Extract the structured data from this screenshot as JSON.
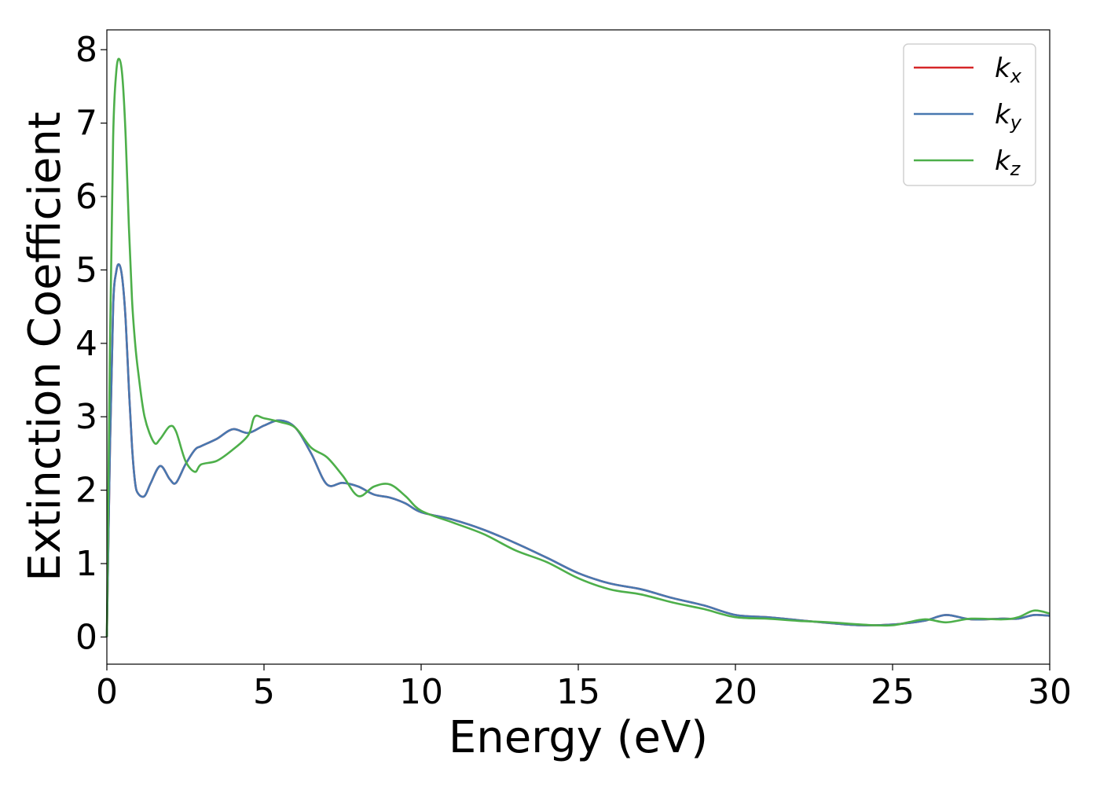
{
  "chart_data": {
    "type": "line",
    "xlabel": "Energy (eV)",
    "ylabel": "Extinction Coefficient",
    "xlim": [
      0,
      30
    ],
    "ylim": [
      -0.37,
      8.27
    ],
    "xticks": [
      0,
      5,
      10,
      15,
      20,
      25,
      30
    ],
    "yticks": [
      0,
      1,
      2,
      3,
      4,
      5,
      6,
      7,
      8
    ],
    "grid": false,
    "legend_position": "top-right",
    "series": [
      {
        "name": "k",
        "subscript": "x",
        "color": "#d62728",
        "x": [
          0,
          0.1,
          0.2,
          0.3,
          0.4,
          0.5,
          0.6,
          0.7,
          0.8,
          0.9,
          1.0,
          1.2,
          1.4,
          1.7,
          2.0,
          2.2,
          2.5,
          2.8,
          3.0,
          3.5,
          4.0,
          4.5,
          5.0,
          5.5,
          6.0,
          6.5,
          7.0,
          7.5,
          8.0,
          8.5,
          9.0,
          9.5,
          10.0,
          11.0,
          12.0,
          13.0,
          14.0,
          15.0,
          16.0,
          17.0,
          18.0,
          19.0,
          20.0,
          21.0,
          22.0,
          23.0,
          24.0,
          25.0,
          26.0,
          26.7,
          27.5,
          28.5,
          29.0,
          29.5,
          30.0
        ],
        "y": [
          0.0,
          2.6,
          4.5,
          4.98,
          5.07,
          4.85,
          4.3,
          3.4,
          2.6,
          2.1,
          1.95,
          1.92,
          2.1,
          2.33,
          2.15,
          2.1,
          2.35,
          2.55,
          2.6,
          2.7,
          2.83,
          2.78,
          2.88,
          2.95,
          2.85,
          2.5,
          2.08,
          2.1,
          2.05,
          1.94,
          1.9,
          1.82,
          1.7,
          1.6,
          1.46,
          1.28,
          1.08,
          0.87,
          0.73,
          0.65,
          0.53,
          0.43,
          0.3,
          0.27,
          0.23,
          0.19,
          0.16,
          0.17,
          0.22,
          0.3,
          0.24,
          0.25,
          0.25,
          0.3,
          0.29
        ]
      },
      {
        "name": "k",
        "subscript": "y",
        "color": "#4878b0",
        "x": [
          0,
          0.1,
          0.2,
          0.3,
          0.4,
          0.5,
          0.6,
          0.7,
          0.8,
          0.9,
          1.0,
          1.2,
          1.4,
          1.7,
          2.0,
          2.2,
          2.5,
          2.8,
          3.0,
          3.5,
          4.0,
          4.5,
          5.0,
          5.5,
          6.0,
          6.5,
          7.0,
          7.5,
          8.0,
          8.5,
          9.0,
          9.5,
          10.0,
          11.0,
          12.0,
          13.0,
          14.0,
          15.0,
          16.0,
          17.0,
          18.0,
          19.0,
          20.0,
          21.0,
          22.0,
          23.0,
          24.0,
          25.0,
          26.0,
          26.7,
          27.5,
          28.5,
          29.0,
          29.5,
          30.0
        ],
        "y": [
          0.0,
          2.6,
          4.5,
          4.98,
          5.07,
          4.85,
          4.3,
          3.4,
          2.6,
          2.1,
          1.95,
          1.92,
          2.1,
          2.33,
          2.15,
          2.1,
          2.35,
          2.55,
          2.6,
          2.7,
          2.83,
          2.78,
          2.88,
          2.95,
          2.85,
          2.5,
          2.08,
          2.1,
          2.05,
          1.94,
          1.9,
          1.82,
          1.7,
          1.6,
          1.46,
          1.28,
          1.08,
          0.87,
          0.73,
          0.65,
          0.53,
          0.43,
          0.3,
          0.27,
          0.23,
          0.19,
          0.16,
          0.17,
          0.22,
          0.3,
          0.24,
          0.25,
          0.25,
          0.3,
          0.29
        ]
      },
      {
        "name": "k",
        "subscript": "z",
        "color": "#4daf4a",
        "x": [
          0,
          0.1,
          0.2,
          0.3,
          0.4,
          0.5,
          0.6,
          0.7,
          0.8,
          0.9,
          1.0,
          1.2,
          1.5,
          1.7,
          2.0,
          2.2,
          2.5,
          2.8,
          3.0,
          3.5,
          4.0,
          4.5,
          4.7,
          5.0,
          5.5,
          6.0,
          6.5,
          7.0,
          7.5,
          8.0,
          8.5,
          9.0,
          9.5,
          10.0,
          11.0,
          12.0,
          13.0,
          14.0,
          15.0,
          16.0,
          17.0,
          18.0,
          19.0,
          20.0,
          21.0,
          22.0,
          23.0,
          24.0,
          25.0,
          26.0,
          26.7,
          27.5,
          28.5,
          29.0,
          29.5,
          30.0
        ],
        "y": [
          0.0,
          4.0,
          6.8,
          7.7,
          7.87,
          7.6,
          6.8,
          5.6,
          4.6,
          4.0,
          3.6,
          3.0,
          2.65,
          2.7,
          2.87,
          2.8,
          2.4,
          2.25,
          2.35,
          2.4,
          2.55,
          2.75,
          3.0,
          2.98,
          2.93,
          2.85,
          2.58,
          2.45,
          2.2,
          1.92,
          2.05,
          2.08,
          1.92,
          1.72,
          1.56,
          1.4,
          1.18,
          1.02,
          0.8,
          0.65,
          0.58,
          0.47,
          0.38,
          0.27,
          0.25,
          0.22,
          0.2,
          0.17,
          0.16,
          0.24,
          0.2,
          0.25,
          0.24,
          0.27,
          0.36,
          0.32
        ]
      }
    ]
  }
}
